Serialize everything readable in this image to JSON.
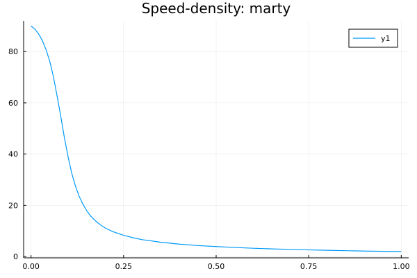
{
  "chart_data": {
    "type": "line",
    "title": "Speed-density: marty",
    "xlabel": "",
    "ylabel": "",
    "xlim": [
      -0.02,
      1.02
    ],
    "ylim": [
      -0.5,
      92
    ],
    "x_ticks": [
      0.0,
      0.25,
      0.5,
      0.75,
      1.0
    ],
    "x_tick_labels": [
      "0.00",
      "0.25",
      "0.50",
      "0.75",
      "1.00"
    ],
    "y_ticks": [
      0,
      20,
      40,
      60,
      80
    ],
    "y_tick_labels": [
      "0",
      "20",
      "40",
      "60",
      "80"
    ],
    "grid": true,
    "legend": {
      "position": "top-right"
    },
    "series": [
      {
        "name": "y1",
        "color": "#009af9",
        "x": [
          0.0,
          0.01,
          0.02,
          0.03,
          0.04,
          0.05,
          0.06,
          0.07,
          0.08,
          0.09,
          0.1,
          0.11,
          0.12,
          0.13,
          0.14,
          0.15,
          0.16,
          0.17,
          0.18,
          0.19,
          0.2,
          0.22,
          0.25,
          0.28,
          0.3,
          0.35,
          0.4,
          0.45,
          0.5,
          0.55,
          0.6,
          0.65,
          0.7,
          0.75,
          0.8,
          0.85,
          0.9,
          0.95,
          1.0
        ],
        "y": [
          90.0,
          88.8,
          87.0,
          84.5,
          81.0,
          76.5,
          70.5,
          63.0,
          55.0,
          46.5,
          39.0,
          32.5,
          27.5,
          23.5,
          20.5,
          18.0,
          16.0,
          14.5,
          13.2,
          12.1,
          11.2,
          9.8,
          8.3,
          7.2,
          6.6,
          5.6,
          4.85,
          4.3,
          3.9,
          3.55,
          3.25,
          3.0,
          2.8,
          2.6,
          2.45,
          2.3,
          2.15,
          2.05,
          1.95
        ]
      }
    ]
  }
}
